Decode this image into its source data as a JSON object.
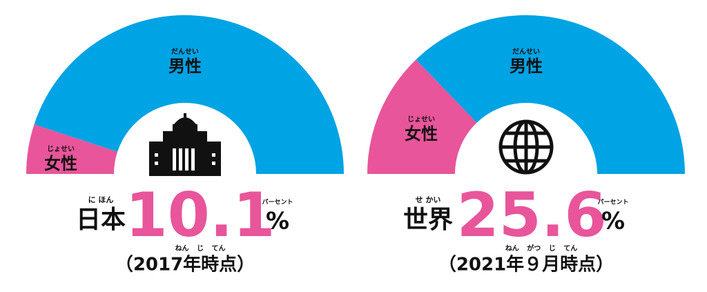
{
  "chart_data": [
    {
      "type": "half-donut",
      "region": "日本",
      "region_ruby": "に ほん",
      "categories": [
        "女性",
        "男性"
      ],
      "categories_ruby": [
        "じょせい",
        "だんせい"
      ],
      "values": [
        10.1,
        89.9
      ],
      "colors": [
        "#e8559a",
        "#00a3e4"
      ],
      "unit": "%",
      "unit_ruby": "パーセント",
      "note": "（2017年時点）",
      "note_ruby": "ねん じ てん"
    },
    {
      "type": "half-donut",
      "region": "世界",
      "region_ruby": "せ かい",
      "categories": [
        "女性",
        "男性"
      ],
      "categories_ruby": [
        "じょせい",
        "だんせい"
      ],
      "values": [
        25.6,
        74.4
      ],
      "colors": [
        "#e8559a",
        "#00a3e4"
      ],
      "unit": "%",
      "unit_ruby": "パーセント",
      "note": "（2021年９月時点）",
      "note_ruby": "ねん がつ じ てん"
    }
  ]
}
